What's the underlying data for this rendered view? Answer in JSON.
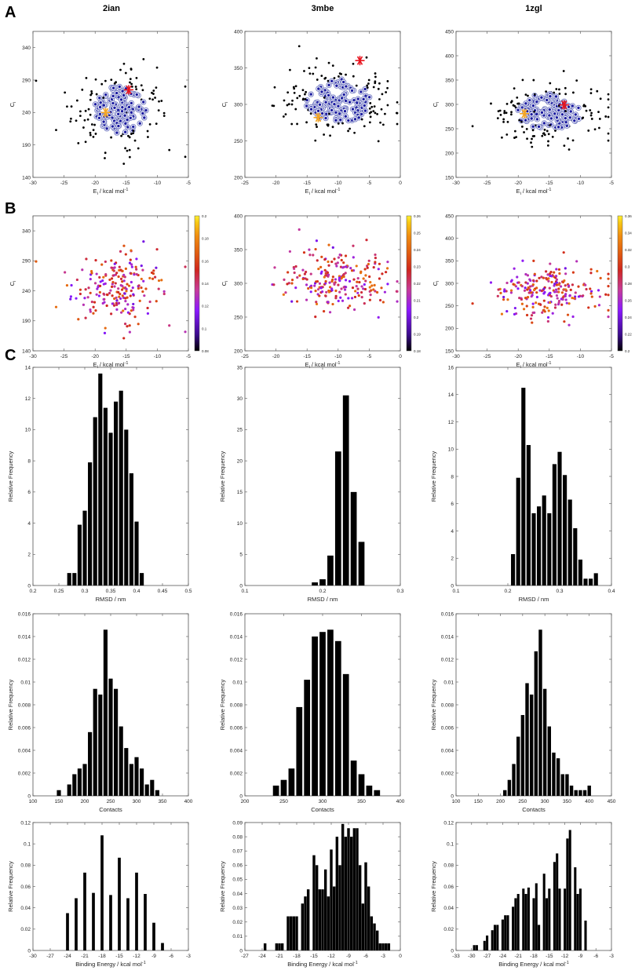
{
  "panel_labels": [
    "A",
    "B",
    "C"
  ],
  "column_titles": [
    "2ian",
    "3mbe",
    "1zgl"
  ],
  "colors": {
    "black_point": "#000000",
    "navy_point": "#1a1aa0",
    "navy_ring": "#7f86c8",
    "red_star": "#e8141e",
    "orange_star": "#f5a623",
    "bar": "#000000",
    "cmap": [
      "#000000",
      "#3a0a8c",
      "#8a18ff",
      "#c63a9a",
      "#d0261e",
      "#e05a10",
      "#f08c10",
      "#f8c814",
      "#fff030"
    ]
  },
  "rows": {
    "scatter_ylabel_main": "C",
    "scatter_ylabel_sub": "i",
    "scatter_xlabel_main": "E",
    "scatter_xlabel_sub": "i",
    "scatter_xlabel_rest": " / kcal mol",
    "scatter_xlabel_sup": "-1",
    "hist_ylabel": "Relative Frequency"
  },
  "chart_data": [
    {
      "type": "scatter",
      "panel": "A",
      "protein": "2ian",
      "xlim": [
        -30,
        -5
      ],
      "ylim": [
        140,
        365
      ],
      "xticks": [
        -30,
        -25,
        -20,
        -15,
        -10,
        -5
      ],
      "yticks": [
        140,
        190,
        240,
        290,
        340
      ],
      "tick_labels_x": [
        "-30",
        "-25",
        "-20",
        "-15",
        "-10",
        "-5"
      ],
      "tick_labels_y": [
        "140",
        "190",
        "240",
        "290",
        "340"
      ],
      "xlabel": "E_i / kcal mol^-1",
      "ylabel": "C_i",
      "n_points": 210,
      "center": [
        -16,
        245
      ],
      "spread": [
        3.6,
        30
      ],
      "cluster_fraction": 0.55,
      "red_star": [
        -14.6,
        275
      ],
      "orange_star": [
        -18.3,
        240
      ],
      "seed": 11
    },
    {
      "type": "scatter",
      "panel": "A",
      "protein": "3mbe",
      "xlim": [
        -25,
        0
      ],
      "ylim": [
        200,
        400
      ],
      "xticks": [
        -25,
        -20,
        -15,
        -10,
        -5,
        0
      ],
      "yticks": [
        200,
        250,
        300,
        350,
        400
      ],
      "tick_labels_x": [
        "-25",
        "-20",
        "-15",
        "-10",
        "-5",
        "0"
      ],
      "tick_labels_y": [
        "200",
        "250",
        "300",
        "350",
        "400"
      ],
      "xlabel": "E_i / kcal mol^-1",
      "ylabel": "C_i",
      "n_points": 230,
      "center": [
        -10,
        305
      ],
      "spread": [
        4.2,
        24
      ],
      "cluster_fraction": 0.6,
      "red_star": [
        -6.5,
        360
      ],
      "orange_star": [
        -13.2,
        282
      ],
      "seed": 23
    },
    {
      "type": "scatter",
      "panel": "A",
      "protein": "1zgl",
      "xlim": [
        -30,
        -5
      ],
      "ylim": [
        150,
        450
      ],
      "xticks": [
        -30,
        -25,
        -20,
        -15,
        -10,
        -5
      ],
      "yticks": [
        150,
        200,
        250,
        300,
        350,
        400,
        450
      ],
      "tick_labels_x": [
        "-30",
        "-25",
        "-20",
        "-15",
        "-10",
        "-5"
      ],
      "tick_labels_y": [
        "150",
        "200",
        "250",
        "300",
        "350",
        "400",
        "450"
      ],
      "xlabel": "E_i / kcal mol^-1",
      "ylabel": "C_i",
      "n_points": 230,
      "center": [
        -15,
        285
      ],
      "spread": [
        4.2,
        30
      ],
      "cluster_fraction": 0.6,
      "red_star": [
        -12.6,
        299
      ],
      "orange_star": [
        -19,
        281
      ],
      "seed": 37
    },
    {
      "type": "scatter",
      "panel": "B",
      "protein": "2ian",
      "xlim": [
        -30,
        -5
      ],
      "ylim": [
        140,
        365
      ],
      "xticks": [
        -30,
        -25,
        -20,
        -15,
        -10,
        -5
      ],
      "yticks": [
        140,
        190,
        240,
        290,
        340
      ],
      "tick_labels_x": [
        "-30",
        "-25",
        "-20",
        "-15",
        "-10",
        "-5"
      ],
      "tick_labels_y": [
        "140",
        "190",
        "240",
        "290",
        "340"
      ],
      "xlabel": "E_i / kcal mol^-1",
      "ylabel": "C_i",
      "n_points": 210,
      "center": [
        -16,
        245
      ],
      "spread": [
        3.6,
        30
      ],
      "colorbar": {
        "min": 0.08,
        "max": 0.2,
        "ticks": [
          "0.2",
          "0.18",
          "0.16",
          "0.14",
          "0.12",
          "0.1",
          "0.08"
        ]
      },
      "seed": 11
    },
    {
      "type": "scatter",
      "panel": "B",
      "protein": "3mbe",
      "xlim": [
        -25,
        0
      ],
      "ylim": [
        200,
        400
      ],
      "xticks": [
        -25,
        -20,
        -15,
        -10,
        -5,
        0
      ],
      "yticks": [
        200,
        250,
        300,
        350,
        400
      ],
      "tick_labels_x": [
        "-25",
        "-20",
        "-15",
        "-10",
        "-5",
        "0"
      ],
      "tick_labels_y": [
        "200",
        "250",
        "300",
        "350",
        "400"
      ],
      "xlabel": "E_i / kcal mol^-1",
      "ylabel": "C_i",
      "n_points": 230,
      "center": [
        -10,
        305
      ],
      "spread": [
        4.2,
        24
      ],
      "colorbar": {
        "min": 0.18,
        "max": 0.26,
        "ticks": [
          "0.26",
          "0.25",
          "0.24",
          "0.23",
          "0.22",
          "0.21",
          "0.2",
          "0.19",
          "0.18"
        ]
      },
      "seed": 23
    },
    {
      "type": "scatter",
      "panel": "B",
      "protein": "1zgl",
      "xlim": [
        -30,
        -5
      ],
      "ylim": [
        150,
        450
      ],
      "xticks": [
        -30,
        -25,
        -20,
        -15,
        -10,
        -5
      ],
      "yticks": [
        150,
        200,
        250,
        300,
        350,
        400,
        450
      ],
      "tick_labels_x": [
        "-30",
        "-25",
        "-20",
        "-15",
        "-10",
        "-5"
      ],
      "tick_labels_y": [
        "150",
        "200",
        "250",
        "300",
        "350",
        "400",
        "450"
      ],
      "xlabel": "E_i / kcal mol^-1",
      "ylabel": "C_i",
      "n_points": 230,
      "center": [
        -15,
        285
      ],
      "spread": [
        4.2,
        30
      ],
      "colorbar": {
        "min": 0.2,
        "max": 0.36,
        "ticks": [
          "0.36",
          "0.34",
          "0.32",
          "0.3",
          "0.28",
          "0.26",
          "0.24",
          "0.22",
          "0.2"
        ]
      },
      "seed": 37
    },
    {
      "type": "bar",
      "panel": "C",
      "protein": "2ian",
      "metric": "rmsd",
      "xlabel": "RMSD / nm",
      "ylabel": "Relative Frequency",
      "xlim": [
        0.2,
        0.5
      ],
      "ylim": [
        0,
        14
      ],
      "xticks": [
        0.2,
        0.25,
        0.3,
        0.35,
        0.4,
        0.45,
        0.5
      ],
      "yticks": [
        0,
        2,
        4,
        6,
        8,
        10,
        12,
        14
      ],
      "tick_labels_x": [
        "0.2",
        "0.25",
        "0.3",
        "0.35",
        "0.4",
        "0.45",
        "0.5"
      ],
      "tick_labels_y": [
        "0",
        "2",
        "4",
        "6",
        "8",
        "10",
        "12",
        "14"
      ],
      "bin_width": 0.01,
      "x": [
        0.27,
        0.28,
        0.29,
        0.3,
        0.31,
        0.32,
        0.33,
        0.34,
        0.35,
        0.36,
        0.37,
        0.38,
        0.39,
        0.4,
        0.41
      ],
      "values": [
        0.8,
        0.8,
        3.9,
        4.8,
        7.9,
        10.8,
        13.6,
        11.4,
        9.8,
        11.8,
        12.5,
        10.0,
        7.2,
        4.1,
        0.8
      ]
    },
    {
      "type": "bar",
      "panel": "C",
      "protein": "3mbe",
      "metric": "rmsd",
      "xlabel": "RMSD / nm",
      "ylabel": "Relative Frequency",
      "xlim": [
        0.1,
        0.3
      ],
      "ylim": [
        0,
        35
      ],
      "xticks": [
        0.1,
        0.2,
        0.3
      ],
      "yticks": [
        0,
        5,
        10,
        15,
        20,
        25,
        30,
        35
      ],
      "tick_labels_x": [
        "0.1",
        "0.2",
        "0.3"
      ],
      "tick_labels_y": [
        "0",
        "5",
        "10",
        "15",
        "20",
        "25",
        "30",
        "35"
      ],
      "bin_width": 0.01,
      "x": [
        0.19,
        0.2,
        0.21,
        0.22,
        0.23,
        0.24,
        0.25
      ],
      "values": [
        0.5,
        1.0,
        4.8,
        21.5,
        30.5,
        15.0,
        7.0
      ]
    },
    {
      "type": "bar",
      "panel": "C",
      "protein": "1zgl",
      "metric": "rmsd",
      "xlabel": "RMSD / nm",
      "ylabel": "Relative Frequency",
      "xlim": [
        0.1,
        0.4
      ],
      "ylim": [
        0,
        16
      ],
      "xticks": [
        0.1,
        0.2,
        0.3,
        0.4
      ],
      "yticks": [
        0,
        2,
        4,
        6,
        8,
        10,
        12,
        14,
        16
      ],
      "tick_labels_x": [
        "0.1",
        "0.2",
        "0.3",
        "0.4"
      ],
      "tick_labels_y": [
        "0",
        "2",
        "4",
        "6",
        "8",
        "10",
        "12",
        "14",
        "16"
      ],
      "bin_width": 0.01,
      "x": [
        0.21,
        0.22,
        0.23,
        0.24,
        0.25,
        0.26,
        0.27,
        0.28,
        0.29,
        0.3,
        0.31,
        0.32,
        0.33,
        0.34,
        0.35,
        0.36,
        0.37
      ],
      "values": [
        2.3,
        7.9,
        14.5,
        10.3,
        5.3,
        5.8,
        6.6,
        5.3,
        8.9,
        9.8,
        8.1,
        6.3,
        4.2,
        1.9,
        0.5,
        0.5,
        0.9
      ]
    },
    {
      "type": "bar",
      "panel": "C",
      "protein": "2ian",
      "metric": "contacts",
      "xlabel": "Contacts",
      "ylabel": "Relative Frequency",
      "xlim": [
        100,
        400
      ],
      "ylim": [
        0,
        0.016
      ],
      "xticks": [
        100,
        150,
        200,
        250,
        300,
        350,
        400
      ],
      "yticks": [
        0,
        0.002,
        0.004,
        0.006,
        0.008,
        0.01,
        0.012,
        0.014,
        0.016
      ],
      "tick_labels_x": [
        "100",
        "150",
        "200",
        "250",
        "300",
        "350",
        "400"
      ],
      "tick_labels_y": [
        "0",
        "0.002",
        "0.004",
        "0.006",
        "0.008",
        "0.01",
        "0.012",
        "0.014",
        "0.016"
      ],
      "bin_width": 10,
      "x": [
        150,
        170,
        180,
        190,
        200,
        210,
        220,
        230,
        240,
        250,
        260,
        270,
        280,
        290,
        300,
        310,
        320,
        330,
        340
      ],
      "values": [
        0.0005,
        0.001,
        0.0019,
        0.0024,
        0.0028,
        0.0056,
        0.0094,
        0.0089,
        0.0146,
        0.0103,
        0.0094,
        0.0061,
        0.0042,
        0.0028,
        0.0034,
        0.0024,
        0.001,
        0.0014,
        0.0005
      ]
    },
    {
      "type": "bar",
      "panel": "C",
      "protein": "3mbe",
      "metric": "contacts",
      "xlabel": "Contacts",
      "ylabel": "Relative Frequency",
      "xlim": [
        200,
        400
      ],
      "ylim": [
        0,
        0.016
      ],
      "xticks": [
        200,
        250,
        300,
        350,
        400
      ],
      "yticks": [
        0,
        0.002,
        0.004,
        0.006,
        0.008,
        0.01,
        0.012,
        0.014,
        0.016
      ],
      "tick_labels_x": [
        "200",
        "250",
        "300",
        "350",
        "400"
      ],
      "tick_labels_y": [
        "0",
        "0.002",
        "0.004",
        "0.006",
        "0.008",
        "0.01",
        "0.012",
        "0.014",
        "0.016"
      ],
      "bin_width": 10,
      "x": [
        240,
        250,
        260,
        270,
        280,
        290,
        300,
        310,
        320,
        330,
        340,
        350,
        360,
        370
      ],
      "values": [
        0.0009,
        0.0014,
        0.0024,
        0.0078,
        0.0102,
        0.014,
        0.0144,
        0.0146,
        0.0136,
        0.0107,
        0.0031,
        0.0019,
        0.0009,
        0.0005
      ]
    },
    {
      "type": "bar",
      "panel": "C",
      "protein": "1zgl",
      "metric": "contacts",
      "xlabel": "Contacts",
      "ylabel": "Relative Frequency",
      "xlim": [
        100,
        450
      ],
      "ylim": [
        0,
        0.016
      ],
      "xticks": [
        100,
        150,
        200,
        250,
        300,
        350,
        400,
        450
      ],
      "yticks": [
        0,
        0.002,
        0.004,
        0.006,
        0.008,
        0.01,
        0.012,
        0.014,
        0.016
      ],
      "tick_labels_x": [
        "100",
        "150",
        "200",
        "250",
        "300",
        "350",
        "400",
        "450"
      ],
      "tick_labels_y": [
        "0",
        "0.002",
        "0.004",
        "0.006",
        "0.008",
        "0.01",
        "0.012",
        "0.014",
        "0.016"
      ],
      "bin_width": 10,
      "x": [
        210,
        220,
        230,
        240,
        250,
        260,
        270,
        280,
        290,
        300,
        310,
        320,
        330,
        340,
        350,
        360,
        370,
        380,
        390,
        400
      ],
      "values": [
        0.0005,
        0.0014,
        0.0028,
        0.0052,
        0.0071,
        0.0099,
        0.0089,
        0.0127,
        0.0146,
        0.0094,
        0.0061,
        0.0038,
        0.0033,
        0.0019,
        0.0019,
        0.0009,
        0.0005,
        0.0005,
        0.0005,
        0.0009
      ]
    },
    {
      "type": "bar",
      "panel": "C",
      "protein": "2ian",
      "metric": "energy",
      "xlabel": "Binding Energy / kcal mol^-1",
      "ylabel": "Relative Frequency",
      "xlim": [
        -30,
        -3
      ],
      "ylim": [
        0,
        0.12
      ],
      "xticks": [
        -30,
        -27,
        -24,
        -21,
        -18,
        -15,
        -12,
        -9,
        -6,
        -3
      ],
      "yticks": [
        0,
        0.02,
        0.04,
        0.06,
        0.08,
        0.1,
        0.12
      ],
      "tick_labels_x": [
        "-30",
        "-27",
        "-24",
        "-21",
        "-18",
        "-15",
        "-12",
        "-9",
        "-6",
        "-3"
      ],
      "tick_labels_y": [
        "0",
        "0.02",
        "0.04",
        "0.06",
        "0.08",
        "0.1",
        "0.12"
      ],
      "bin_width": 0.65,
      "x": [
        -24,
        -22.5,
        -21,
        -19.5,
        -18,
        -16.5,
        -15,
        -13.5,
        -12,
        -10.5,
        -9,
        -7.5
      ],
      "values": [
        0.035,
        0.049,
        0.073,
        0.054,
        0.108,
        0.052,
        0.087,
        0.049,
        0.073,
        0.053,
        0.026,
        0.007
      ]
    },
    {
      "type": "bar",
      "panel": "C",
      "protein": "3mbe",
      "metric": "energy",
      "xlabel": "Binding Energy / kcal mol^-1",
      "ylabel": "Relative Frequency",
      "xlim": [
        -27,
        0
      ],
      "ylim": [
        0,
        0.09
      ],
      "xticks": [
        -27,
        -24,
        -21,
        -18,
        -15,
        -12,
        -9,
        -6,
        -3,
        0
      ],
      "yticks": [
        0,
        0.01,
        0.02,
        0.03,
        0.04,
        0.05,
        0.06,
        0.07,
        0.08,
        0.09
      ],
      "tick_labels_x": [
        "-27",
        "-24",
        "-21",
        "-18",
        "-15",
        "-12",
        "-9",
        "-6",
        "-3",
        "0"
      ],
      "tick_labels_y": [
        "0",
        "0.01",
        "0.02",
        "0.03",
        "0.04",
        "0.05",
        "0.06",
        "0.07",
        "0.08",
        "0.09"
      ],
      "bin_width": 0.6,
      "x": [
        -23.5,
        -21.5,
        -21,
        -20.5,
        -19.5,
        -19,
        -18.5,
        -18,
        -17,
        -16.5,
        -16,
        -15,
        -14.5,
        -14,
        -13.5,
        -13,
        -12.5,
        -12,
        -11.5,
        -11,
        -10.5,
        -10,
        -9.5,
        -9,
        -8.5,
        -8,
        -7.5,
        -7,
        -6.5,
        -6,
        -5.5,
        -5,
        -4.5,
        -4,
        -3.5,
        -3,
        -2.5,
        -2
      ],
      "values": [
        0.005,
        0.005,
        0.005,
        0.005,
        0.024,
        0.024,
        0.024,
        0.024,
        0.033,
        0.038,
        0.043,
        0.067,
        0.06,
        0.043,
        0.043,
        0.057,
        0.038,
        0.071,
        0.045,
        0.08,
        0.06,
        0.089,
        0.08,
        0.086,
        0.08,
        0.086,
        0.086,
        0.06,
        0.033,
        0.062,
        0.045,
        0.024,
        0.019,
        0.014,
        0.005,
        0.005,
        0.005,
        0.005
      ]
    },
    {
      "type": "bar",
      "panel": "C",
      "protein": "1zgl",
      "metric": "energy",
      "xlabel": "Binding Energy / kcal mol^-1",
      "ylabel": "Relative Frequency",
      "xlim": [
        -33,
        -3
      ],
      "ylim": [
        0,
        0.12
      ],
      "xticks": [
        -33,
        -30,
        -27,
        -24,
        -21,
        -18,
        -15,
        -12,
        -9,
        -6,
        -3
      ],
      "yticks": [
        0,
        0.02,
        0.04,
        0.06,
        0.08,
        0.1,
        0.12
      ],
      "tick_labels_x": [
        "-33",
        "-30",
        "-27",
        "-24",
        "-21",
        "-18",
        "-15",
        "-12",
        "-9",
        "-6",
        "-3"
      ],
      "tick_labels_y": [
        "0",
        "0.02",
        "0.04",
        "0.06",
        "0.08",
        "0.1",
        "0.12"
      ],
      "bin_width": 0.6,
      "x": [
        -29.5,
        -29,
        -27.5,
        -27,
        -26,
        -25.5,
        -25,
        -24,
        -23.5,
        -23,
        -22,
        -21.5,
        -21,
        -20,
        -19.5,
        -19,
        -18,
        -17.5,
        -17,
        -16,
        -15.5,
        -15,
        -14,
        -13.5,
        -13,
        -12,
        -11.5,
        -11,
        -10,
        -9.5,
        -9,
        -8
      ],
      "values": [
        0.005,
        0.005,
        0.009,
        0.014,
        0.019,
        0.024,
        0.024,
        0.029,
        0.033,
        0.033,
        0.041,
        0.049,
        0.053,
        0.058,
        0.053,
        0.059,
        0.049,
        0.063,
        0.024,
        0.072,
        0.049,
        0.058,
        0.083,
        0.091,
        0.058,
        0.058,
        0.105,
        0.113,
        0.078,
        0.053,
        0.058,
        0.028
      ]
    }
  ]
}
